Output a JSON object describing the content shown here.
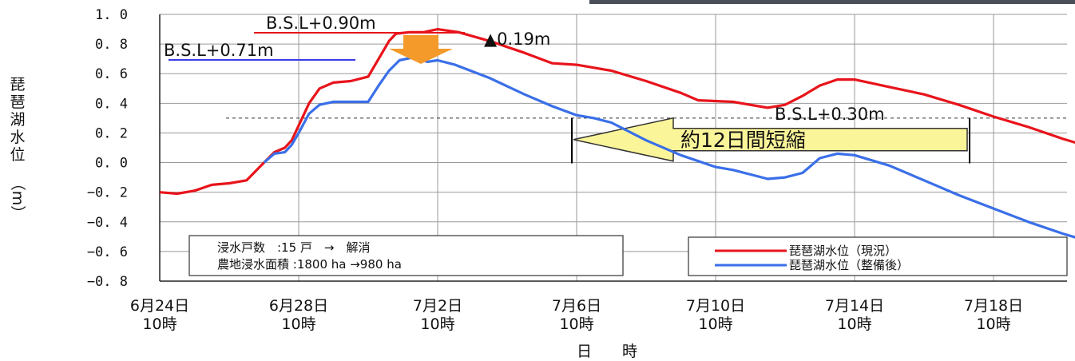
{
  "chart_data": {
    "type": "line",
    "ylabel": [
      "琵",
      "琶",
      "湖",
      "水",
      "位",
      "（m）"
    ],
    "xlabel": "日　　時",
    "ylim": [
      -0.8,
      1.0
    ],
    "yticks": [
      "1. 0",
      "0. 8",
      "0. 6",
      "0. 4",
      "0. 2",
      "0. 0",
      "−0. 2",
      "−0. 4",
      "−0. 6",
      "−0. 8"
    ],
    "ytick_values": [
      1.0,
      0.8,
      0.6,
      0.4,
      0.2,
      0.0,
      -0.2,
      -0.4,
      -0.6,
      -0.8
    ],
    "xlim": [
      0,
      27.5
    ],
    "x_unit": "days from 6月24日 10時",
    "xticks": [
      {
        "day": 0,
        "line1": "6月24日",
        "line2": "10時"
      },
      {
        "day": 4,
        "line1": "6月28日",
        "line2": "10時"
      },
      {
        "day": 8,
        "line1": "7月2日",
        "line2": "10時"
      },
      {
        "day": 12,
        "line1": "7月6日",
        "line2": "10時"
      },
      {
        "day": 16,
        "line1": "7月10日",
        "line2": "10時"
      },
      {
        "day": 20,
        "line1": "7月14日",
        "line2": "10時"
      },
      {
        "day": 24,
        "line1": "7月18日",
        "line2": "10時"
      }
    ],
    "series": [
      {
        "name": "琵琶湖水位（現況）",
        "color": "#e8141b",
        "points": [
          [
            0,
            -0.2
          ],
          [
            0.5,
            -0.21
          ],
          [
            1,
            -0.19
          ],
          [
            1.5,
            -0.15
          ],
          [
            2,
            -0.14
          ],
          [
            2.5,
            -0.12
          ],
          [
            3,
            0.0
          ],
          [
            3.3,
            0.07
          ],
          [
            3.6,
            0.1
          ],
          [
            3.8,
            0.15
          ],
          [
            4,
            0.25
          ],
          [
            4.3,
            0.4
          ],
          [
            4.6,
            0.5
          ],
          [
            5,
            0.54
          ],
          [
            5.5,
            0.55
          ],
          [
            6,
            0.58
          ],
          [
            6.3,
            0.7
          ],
          [
            6.6,
            0.82
          ],
          [
            6.8,
            0.87
          ],
          [
            7.2,
            0.88
          ],
          [
            7.6,
            0.88
          ],
          [
            8,
            0.9
          ],
          [
            8.6,
            0.88
          ],
          [
            9.5,
            0.82
          ],
          [
            10.5,
            0.74
          ],
          [
            11.3,
            0.67
          ],
          [
            12,
            0.66
          ],
          [
            13,
            0.62
          ],
          [
            14,
            0.55
          ],
          [
            15,
            0.47
          ],
          [
            15.5,
            0.42
          ],
          [
            16.5,
            0.41
          ],
          [
            17.5,
            0.37
          ],
          [
            18,
            0.39
          ],
          [
            18.5,
            0.45
          ],
          [
            19,
            0.52
          ],
          [
            19.5,
            0.56
          ],
          [
            20,
            0.56
          ],
          [
            21,
            0.51
          ],
          [
            22,
            0.46
          ],
          [
            23,
            0.39
          ],
          [
            24,
            0.31
          ],
          [
            25,
            0.24
          ],
          [
            26,
            0.16
          ],
          [
            27,
            0.09
          ],
          [
            27.5,
            0.06
          ]
        ]
      },
      {
        "name": "琵琶湖水位（整備後）",
        "color": "#3a6fe8",
        "points": [
          [
            3,
            0.0
          ],
          [
            3.3,
            0.06
          ],
          [
            3.6,
            0.07
          ],
          [
            3.8,
            0.12
          ],
          [
            4,
            0.2
          ],
          [
            4.3,
            0.33
          ],
          [
            4.6,
            0.39
          ],
          [
            5,
            0.41
          ],
          [
            5.5,
            0.41
          ],
          [
            6,
            0.41
          ],
          [
            6.3,
            0.52
          ],
          [
            6.6,
            0.62
          ],
          [
            6.9,
            0.69
          ],
          [
            7.3,
            0.71
          ],
          [
            7.7,
            0.68
          ],
          [
            8,
            0.69
          ],
          [
            8.5,
            0.66
          ],
          [
            9.5,
            0.57
          ],
          [
            10.5,
            0.46
          ],
          [
            11.3,
            0.38
          ],
          [
            12,
            0.32
          ],
          [
            12.5,
            0.3
          ],
          [
            13,
            0.27
          ],
          [
            14,
            0.15
          ],
          [
            15,
            0.05
          ],
          [
            16,
            -0.03
          ],
          [
            16.5,
            -0.05
          ],
          [
            17.5,
            -0.11
          ],
          [
            18,
            -0.1
          ],
          [
            18.5,
            -0.07
          ],
          [
            19,
            0.03
          ],
          [
            19.5,
            0.06
          ],
          [
            20,
            0.05
          ],
          [
            21,
            -0.02
          ],
          [
            22,
            -0.12
          ],
          [
            23,
            -0.22
          ],
          [
            24,
            -0.31
          ],
          [
            25,
            -0.4
          ],
          [
            26,
            -0.48
          ],
          [
            27,
            -0.55
          ]
        ]
      }
    ],
    "reference_line": {
      "y": 0.3,
      "style": "dashed"
    },
    "annotations": {
      "bsl090": "B.S.L+0.90m",
      "bsl071": "B.S.L+0.71m",
      "diff": "▲0.19m",
      "bsl030": "B.S.L+0.30m",
      "shorten": "約12日間短縮"
    },
    "info_box": [
      "浸水戸数　:15 戸　→　解消",
      "農地浸水面積 :1800 ha →980 ha"
    ],
    "legend": {
      "position": "bottom-right"
    }
  }
}
